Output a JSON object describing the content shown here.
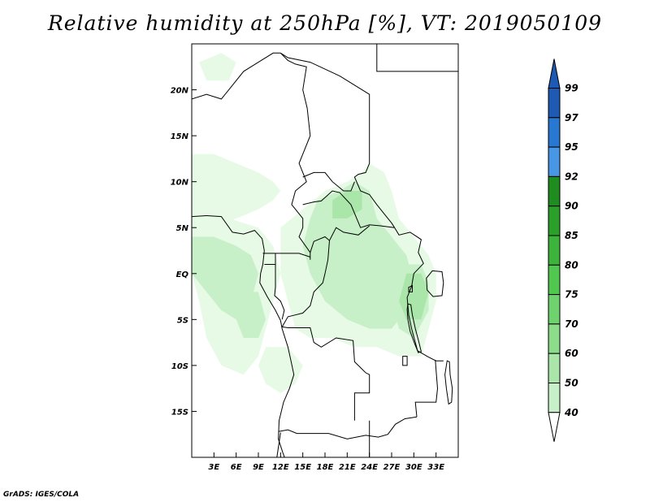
{
  "title": "Relative humidity at 250hPa [%], VT: 2019050109",
  "credit": "GrADS: IGES/COLA",
  "map": {
    "lon_range": [
      0,
      36
    ],
    "lat_range": [
      -20,
      25
    ],
    "lon_ticks": [
      {
        "lon": 3,
        "label": "3E"
      },
      {
        "lon": 6,
        "label": "6E"
      },
      {
        "lon": 9,
        "label": "9E"
      },
      {
        "lon": 12,
        "label": "12E"
      },
      {
        "lon": 15,
        "label": "15E"
      },
      {
        "lon": 18,
        "label": "18E"
      },
      {
        "lon": 21,
        "label": "21E"
      },
      {
        "lon": 24,
        "label": "24E"
      },
      {
        "lon": 27,
        "label": "27E"
      },
      {
        "lon": 30,
        "label": "30E"
      },
      {
        "lon": 33,
        "label": "33E"
      }
    ],
    "lat_ticks": [
      {
        "lat": 20,
        "label": "20N"
      },
      {
        "lat": 15,
        "label": "15N"
      },
      {
        "lat": 10,
        "label": "10N"
      },
      {
        "lat": 5,
        "label": "5N"
      },
      {
        "lat": 0,
        "label": "EQ"
      },
      {
        "lat": -5,
        "label": "5S"
      },
      {
        "lat": -10,
        "label": "10S"
      },
      {
        "lat": -15,
        "label": "15S"
      }
    ]
  },
  "colorbar": {
    "levels": [
      {
        "label": "40",
        "color": "#e6fae6"
      },
      {
        "label": "50",
        "color": "#c8f0c8"
      },
      {
        "label": "60",
        "color": "#aae6aa"
      },
      {
        "label": "70",
        "color": "#8cdc8c"
      },
      {
        "label": "75",
        "color": "#6ed26e"
      },
      {
        "label": "80",
        "color": "#50c850"
      },
      {
        "label": "85",
        "color": "#3cb43c"
      },
      {
        "label": "90",
        "color": "#2aa02a"
      },
      {
        "label": "92",
        "color": "#1e8c1e"
      },
      {
        "label": "95",
        "color": "#4896e6"
      },
      {
        "label": "97",
        "color": "#2878d2"
      },
      {
        "label": "99",
        "color": "#1e5ab4"
      }
    ],
    "low_color": "#ffffff"
  },
  "humidity_fields": [
    {
      "name": "north-west-sahel-band",
      "level": 40,
      "points": [
        [
          0,
          13
        ],
        [
          3,
          13
        ],
        [
          6,
          12
        ],
        [
          9,
          11
        ],
        [
          11,
          10
        ],
        [
          12,
          9
        ],
        [
          11,
          8
        ],
        [
          9,
          7
        ],
        [
          6,
          6
        ],
        [
          3,
          5
        ],
        [
          0,
          5
        ]
      ]
    },
    {
      "name": "gulf-of-guinea-region",
      "level": 40,
      "points": [
        [
          0,
          6
        ],
        [
          5,
          6
        ],
        [
          9,
          5
        ],
        [
          11,
          3
        ],
        [
          12,
          0
        ],
        [
          11,
          -3
        ],
        [
          10,
          -6
        ],
        [
          9,
          -9
        ],
        [
          7,
          -11
        ],
        [
          4,
          -10
        ],
        [
          2,
          -7
        ],
        [
          1,
          -3
        ],
        [
          0,
          0
        ]
      ]
    },
    {
      "name": "congo-basin-region",
      "level": 40,
      "points": [
        [
          12,
          5
        ],
        [
          15,
          7
        ],
        [
          18,
          9
        ],
        [
          21,
          10
        ],
        [
          23,
          11
        ],
        [
          24,
          12
        ],
        [
          26,
          11
        ],
        [
          27,
          9
        ],
        [
          28,
          6
        ],
        [
          30,
          4
        ],
        [
          32,
          2
        ],
        [
          33,
          0
        ],
        [
          33,
          -3
        ],
        [
          32,
          -6
        ],
        [
          31,
          -9
        ],
        [
          28,
          -9
        ],
        [
          25,
          -8
        ],
        [
          22,
          -8
        ],
        [
          19,
          -7
        ],
        [
          16,
          -7
        ],
        [
          14,
          -6
        ],
        [
          13,
          -3
        ],
        [
          12,
          0
        ]
      ]
    },
    {
      "name": "angola-patch",
      "level": 40,
      "points": [
        [
          10,
          -8
        ],
        [
          13,
          -8
        ],
        [
          15,
          -10
        ],
        [
          14,
          -12
        ],
        [
          12,
          -13
        ],
        [
          10,
          -12
        ],
        [
          9,
          -10
        ]
      ]
    },
    {
      "name": "sahara-patch",
      "level": 40,
      "points": [
        [
          1,
          23
        ],
        [
          4,
          24
        ],
        [
          6,
          23
        ],
        [
          5,
          21
        ],
        [
          2,
          21
        ]
      ]
    },
    {
      "name": "coastal-band",
      "level": 50,
      "points": [
        [
          0,
          4
        ],
        [
          3,
          4
        ],
        [
          6,
          3
        ],
        [
          8,
          2
        ],
        [
          9,
          0
        ],
        [
          8,
          -3
        ],
        [
          6,
          -5
        ],
        [
          4,
          -4
        ],
        [
          2,
          -2
        ],
        [
          0,
          0
        ]
      ]
    },
    {
      "name": "central-belt",
      "level": 50,
      "points": [
        [
          17,
          8
        ],
        [
          20,
          9
        ],
        [
          22,
          10
        ],
        [
          24,
          9
        ],
        [
          25,
          6
        ],
        [
          27,
          4
        ],
        [
          29,
          2
        ],
        [
          30,
          -1
        ],
        [
          29,
          -4
        ],
        [
          27,
          -6
        ],
        [
          24,
          -6
        ],
        [
          21,
          -5
        ],
        [
          18,
          -3
        ],
        [
          16,
          0
        ],
        [
          15,
          3
        ],
        [
          16,
          6
        ]
      ]
    },
    {
      "name": "lake-victoria-area",
      "level": 50,
      "points": [
        [
          28,
          1
        ],
        [
          31,
          1
        ],
        [
          32,
          -1
        ],
        [
          32,
          -4
        ],
        [
          30,
          -7
        ],
        [
          28,
          -6
        ],
        [
          27,
          -3
        ],
        [
          27,
          -1
        ]
      ]
    },
    {
      "name": "western-coast-patch",
      "level": 50,
      "points": [
        [
          6,
          -2
        ],
        [
          9,
          -2
        ],
        [
          10,
          -5
        ],
        [
          9,
          -7
        ],
        [
          7,
          -7
        ],
        [
          6,
          -5
        ]
      ]
    },
    {
      "name": "darker-core-east",
      "level": 60,
      "points": [
        [
          29,
          0
        ],
        [
          31,
          0
        ],
        [
          32,
          -2
        ],
        [
          31,
          -5
        ],
        [
          29,
          -5
        ],
        [
          28,
          -3
        ]
      ]
    },
    {
      "name": "darker-core-north",
      "level": 60,
      "points": [
        [
          19,
          8
        ],
        [
          21,
          9
        ],
        [
          23,
          9
        ],
        [
          23,
          7
        ],
        [
          21,
          6
        ],
        [
          19,
          6
        ]
      ]
    }
  ],
  "borders": [
    [
      [
        0,
        19
      ],
      [
        2,
        19.5
      ],
      [
        4,
        19
      ],
      [
        5,
        20
      ],
      [
        7,
        22
      ],
      [
        9,
        23
      ],
      [
        11,
        24
      ],
      [
        12,
        24
      ]
    ],
    [
      [
        12,
        24
      ],
      [
        13,
        23.2
      ],
      [
        14,
        22.8
      ],
      [
        15.5,
        22.5
      ],
      [
        15,
        20
      ],
      [
        15.6,
        18
      ],
      [
        16,
        15
      ],
      [
        15,
        13
      ],
      [
        14.5,
        12
      ],
      [
        15,
        11
      ],
      [
        15.5,
        10
      ],
      [
        14,
        9
      ],
      [
        13.5,
        7.5
      ],
      [
        15,
        6
      ],
      [
        15,
        5
      ],
      [
        14.5,
        4
      ],
      [
        16,
        2.3
      ],
      [
        16,
        1.5
      ]
    ],
    [
      [
        12,
        24
      ],
      [
        13,
        23.5
      ],
      [
        16,
        23
      ],
      [
        20,
        21.5
      ],
      [
        24,
        19.5
      ],
      [
        24,
        15
      ],
      [
        24,
        12
      ],
      [
        23.5,
        11
      ],
      [
        22.5,
        10.8
      ],
      [
        22,
        10.5
      ],
      [
        22.8,
        9
      ],
      [
        24,
        8.6
      ],
      [
        25,
        7.5
      ],
      [
        26,
        6.5
      ],
      [
        27,
        5.5
      ],
      [
        27.4,
        5
      ]
    ],
    [
      [
        25,
        25
      ],
      [
        25,
        22
      ],
      [
        37,
        22
      ]
    ],
    [
      [
        15,
        10.5
      ],
      [
        16.5,
        11
      ],
      [
        18,
        11
      ],
      [
        19,
        10
      ],
      [
        20.5,
        9
      ],
      [
        21.5,
        9
      ],
      [
        22,
        10
      ]
    ],
    [
      [
        15,
        7.5
      ],
      [
        16.5,
        7.8
      ],
      [
        17.5,
        7.9
      ],
      [
        19,
        9
      ],
      [
        20,
        8.8
      ],
      [
        21.5,
        7.5
      ],
      [
        22.8,
        5
      ],
      [
        24,
        5.3
      ],
      [
        25.5,
        5.2
      ],
      [
        27.4,
        5
      ]
    ],
    [
      [
        16,
        2.3
      ],
      [
        16.5,
        3.5
      ],
      [
        18,
        4
      ],
      [
        18.6,
        3.6
      ],
      [
        19.5,
        5
      ],
      [
        20.5,
        4.5
      ],
      [
        22.5,
        4.2
      ],
      [
        24,
        5.2
      ]
    ],
    [
      [
        27.4,
        5
      ],
      [
        28,
        4.2
      ],
      [
        29.5,
        4.5
      ],
      [
        31,
        3.7
      ],
      [
        30.6,
        2.3
      ],
      [
        31.3,
        1.1
      ],
      [
        30,
        0
      ],
      [
        29.7,
        -1.4
      ],
      [
        29.1,
        -2.6
      ],
      [
        29.3,
        -4.5
      ],
      [
        29.7,
        -6
      ],
      [
        30.5,
        -8.4
      ]
    ],
    [
      [
        18.6,
        3.6
      ],
      [
        18.4,
        1.5
      ],
      [
        18,
        0
      ],
      [
        17.7,
        -1
      ],
      [
        16.5,
        -2
      ],
      [
        16,
        -3.5
      ],
      [
        15,
        -4.3
      ],
      [
        14,
        -4.5
      ],
      [
        13,
        -4.7
      ],
      [
        12.2,
        -5.8
      ]
    ],
    [
      [
        9.6,
        2.2
      ],
      [
        11.3,
        2.2
      ],
      [
        13.2,
        2.2
      ],
      [
        14.5,
        2.2
      ],
      [
        16,
        1.8
      ]
    ],
    [
      [
        9.8,
        1
      ],
      [
        11.3,
        1
      ],
      [
        11.3,
        2.2
      ]
    ],
    [
      [
        11.3,
        1
      ],
      [
        11.3,
        -1.5
      ],
      [
        11.2,
        -2.4
      ],
      [
        12,
        -3
      ],
      [
        12.5,
        -4
      ],
      [
        12.2,
        -5
      ]
    ],
    [
      [
        12.2,
        -5.8
      ],
      [
        13,
        -5.9
      ],
      [
        16,
        -5.9
      ],
      [
        16.5,
        -7.5
      ],
      [
        17.5,
        -8
      ],
      [
        19.5,
        -7
      ],
      [
        21.8,
        -7.3
      ],
      [
        22,
        -9.6
      ],
      [
        23.5,
        -10.8
      ],
      [
        24,
        -11
      ],
      [
        24,
        -13
      ],
      [
        22,
        -13
      ],
      [
        22,
        -16
      ]
    ],
    [
      [
        11.7,
        -17.2
      ],
      [
        13,
        -17
      ],
      [
        14.2,
        -17.4
      ],
      [
        18.5,
        -17.4
      ],
      [
        21,
        -18
      ],
      [
        23.5,
        -17.6
      ],
      [
        25.2,
        -17.8
      ],
      [
        26.5,
        -17.5
      ],
      [
        27.5,
        -16.4
      ],
      [
        28.8,
        -15.8
      ],
      [
        30.4,
        -15.6
      ]
    ],
    [
      [
        30.4,
        -15.6
      ],
      [
        30.2,
        -14
      ],
      [
        33,
        -14
      ],
      [
        33.2,
        -12.5
      ],
      [
        33,
        -10.5
      ],
      [
        32.9,
        -9.4
      ]
    ],
    [
      [
        30.5,
        -8.4
      ],
      [
        32,
        -9.1
      ],
      [
        33,
        -9.5
      ],
      [
        34,
        -9.5
      ]
    ],
    [
      [
        10.5,
        -25
      ],
      [
        11.5,
        -20
      ],
      [
        12,
        -17.3
      ]
    ],
    [
      [
        24,
        -16
      ],
      [
        24,
        -22
      ]
    ]
  ],
  "coastline": [
    [
      [
        0,
        6.2
      ],
      [
        2,
        6.3
      ],
      [
        4,
        6.2
      ],
      [
        5.5,
        4.5
      ],
      [
        7,
        4.3
      ],
      [
        8.5,
        4.7
      ],
      [
        9.5,
        3.8
      ],
      [
        9.8,
        2.5
      ],
      [
        9.6,
        1
      ],
      [
        9.3,
        0
      ],
      [
        9.2,
        -1
      ],
      [
        10.2,
        -2.5
      ],
      [
        11.3,
        -4
      ],
      [
        12,
        -5.1
      ],
      [
        12.2,
        -6
      ],
      [
        13,
        -8
      ],
      [
        13.4,
        -9.5
      ],
      [
        13.8,
        -11
      ],
      [
        13.2,
        -12.5
      ],
      [
        12.4,
        -14
      ],
      [
        11.8,
        -16
      ],
      [
        11.7,
        -18
      ],
      [
        12.3,
        -19.5
      ],
      [
        13,
        -21
      ]
    ]
  ],
  "lakes": [
    [
      [
        32.5,
        0.3
      ],
      [
        33.8,
        0.2
      ],
      [
        34,
        -1
      ],
      [
        33.8,
        -2.4
      ],
      [
        32.6,
        -2.5
      ],
      [
        31.8,
        -1.8
      ],
      [
        31.7,
        -0.5
      ]
    ],
    [
      [
        29.2,
        -3.3
      ],
      [
        29.6,
        -3.4
      ],
      [
        29.8,
        -4.5
      ],
      [
        30.2,
        -6
      ],
      [
        30.7,
        -7.5
      ],
      [
        31,
        -8.5
      ],
      [
        30.6,
        -8.6
      ],
      [
        30.1,
        -7.6
      ],
      [
        29.5,
        -6.3
      ],
      [
        29.2,
        -5
      ],
      [
        29.1,
        -3.9
      ]
    ],
    [
      [
        34.5,
        -9.5
      ],
      [
        34.8,
        -9.6
      ],
      [
        34.9,
        -11
      ],
      [
        35.2,
        -12.5
      ],
      [
        35.1,
        -14
      ],
      [
        34.7,
        -14.2
      ],
      [
        34.4,
        -12.5
      ],
      [
        34.2,
        -11
      ]
    ],
    [
      [
        28.5,
        -9
      ],
      [
        29.1,
        -9
      ],
      [
        29.1,
        -10
      ],
      [
        28.5,
        -10
      ]
    ],
    [
      [
        29.3,
        -1.5
      ],
      [
        29.8,
        -1.3
      ],
      [
        29.8,
        -2
      ],
      [
        29.3,
        -2
      ]
    ]
  ]
}
